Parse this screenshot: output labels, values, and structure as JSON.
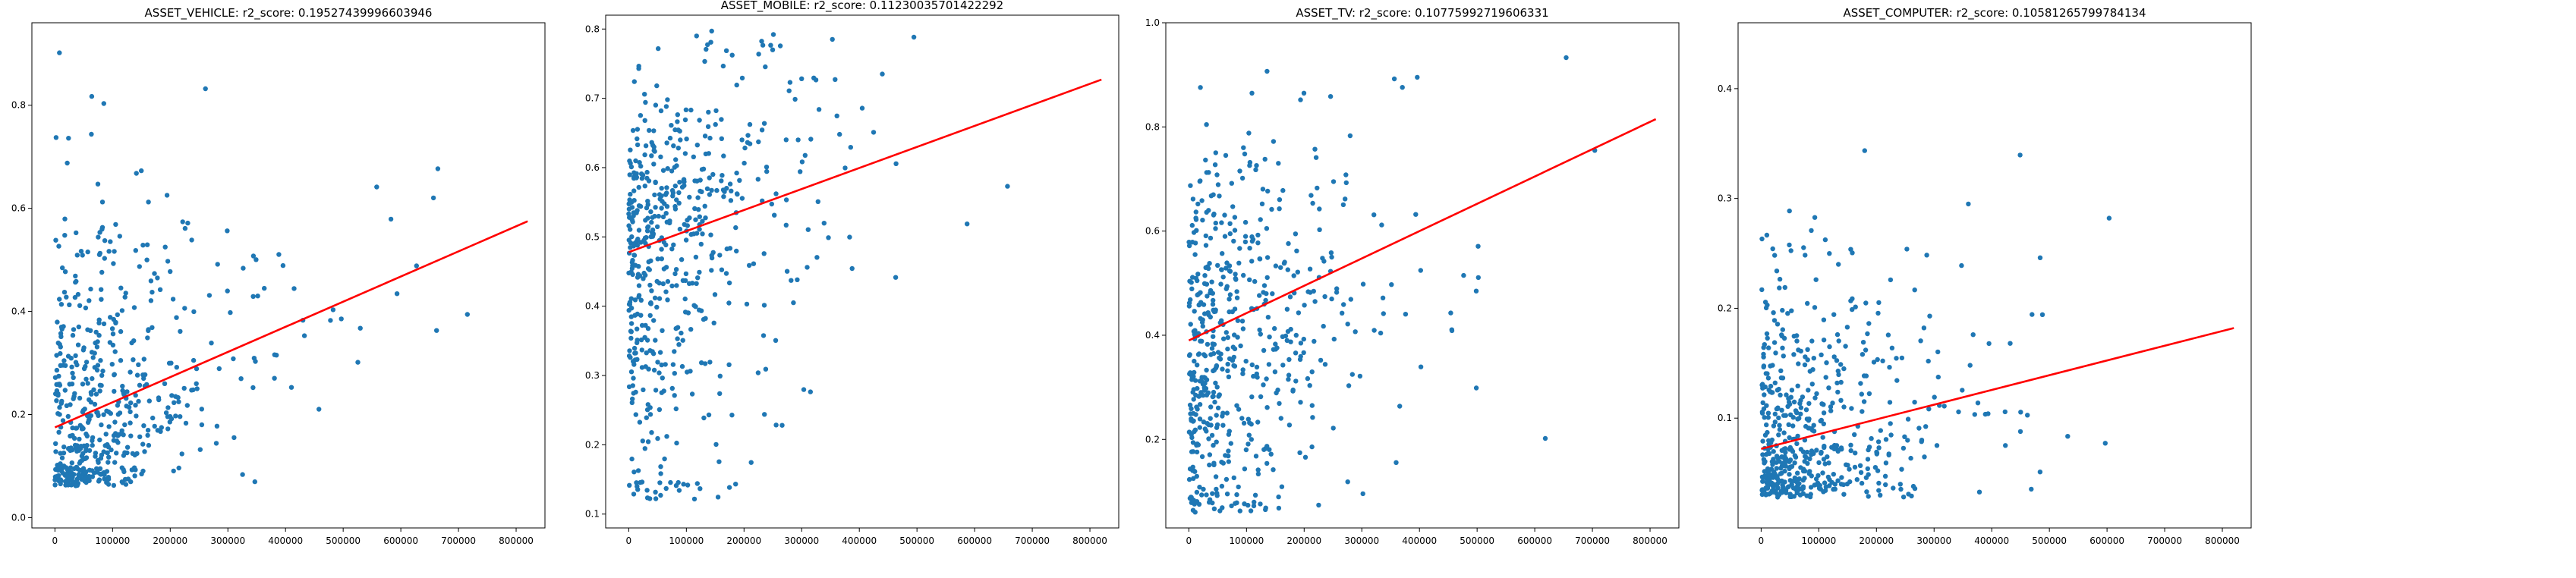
{
  "chart_data": [
    {
      "type": "scatter",
      "title": "ASSET_VEHICLE:  r2_score: 0.19527439996603946",
      "xlabel": "",
      "ylabel": "",
      "xlim": [
        -40000,
        850000
      ],
      "ylim": [
        -0.02,
        0.96
      ],
      "xticks": [
        0,
        100000,
        200000,
        300000,
        400000,
        500000,
        600000,
        700000,
        800000
      ],
      "xtick_labels": [
        "0",
        "100000",
        "200000",
        "300000",
        "400000",
        "500000",
        "600000",
        "700000",
        "800000"
      ],
      "yticks": [
        0.0,
        0.2,
        0.4,
        0.6,
        0.8
      ],
      "ytick_labels": [
        "0.0",
        "0.2",
        "0.4",
        "0.6",
        "0.8"
      ],
      "fit_line": {
        "x": [
          0,
          820000
        ],
        "y": [
          0.175,
          0.575
        ]
      },
      "sample": {
        "n": 560,
        "seed": 11,
        "x_scale": 110000,
        "x_max": 830000,
        "noise": 0.11,
        "skew": 0.9,
        "y_min": 0.06,
        "y_max": 0.91,
        "intercept_shift": -0.02
      }
    },
    {
      "type": "scatter",
      "title": "ASSET_MOBILE:  r2_score: 0.11230035701422292",
      "xlabel": "",
      "ylabel": "",
      "xlim": [
        -40000,
        850000
      ],
      "ylim": [
        0.08,
        0.82
      ],
      "xticks": [
        0,
        100000,
        200000,
        300000,
        400000,
        500000,
        600000,
        700000,
        800000
      ],
      "xtick_labels": [
        "0",
        "100000",
        "200000",
        "300000",
        "400000",
        "500000",
        "600000",
        "700000",
        "800000"
      ],
      "yticks": [
        0.1,
        0.2,
        0.3,
        0.4,
        0.5,
        0.6,
        0.7,
        0.8
      ],
      "ytick_labels": [
        "0.1",
        "0.2",
        "0.3",
        "0.4",
        "0.5",
        "0.6",
        "0.7",
        "0.8"
      ],
      "fit_line": {
        "x": [
          0,
          820000
        ],
        "y": [
          0.478,
          0.727
        ]
      },
      "sample": {
        "n": 560,
        "seed": 23,
        "x_scale": 110000,
        "x_max": 820000,
        "noise": 0.12,
        "skew": -0.6,
        "y_min": 0.12,
        "y_max": 0.8,
        "intercept_shift": 0.0
      }
    },
    {
      "type": "scatter",
      "title": "ASSET_TV:  r2_score: 0.10775992719606331",
      "xlabel": "",
      "ylabel": "",
      "xlim": [
        -40000,
        850000
      ],
      "ylim": [
        0.03,
        1.0
      ],
      "xticks": [
        0,
        100000,
        200000,
        300000,
        400000,
        500000,
        600000,
        700000,
        800000
      ],
      "xtick_labels": [
        "0",
        "100000",
        "200000",
        "300000",
        "400000",
        "500000",
        "600000",
        "700000",
        "800000"
      ],
      "yticks": [
        0.2,
        0.4,
        0.6,
        0.8,
        1.0
      ],
      "ytick_labels": [
        "0.2",
        "0.4",
        "0.6",
        "0.8",
        "1.0"
      ],
      "fit_line": {
        "x": [
          0,
          810000
        ],
        "y": [
          0.39,
          0.815
        ]
      },
      "sample": {
        "n": 560,
        "seed": 37,
        "x_scale": 110000,
        "x_max": 820000,
        "noise": 0.2,
        "skew": 0.0,
        "y_min": 0.06,
        "y_max": 0.96,
        "intercept_shift": -0.04
      }
    },
    {
      "type": "scatter",
      "title": "ASSET_COMPUTER:  r2_score: 0.10581265799784134",
      "xlabel": "",
      "ylabel": "",
      "xlim": [
        -40000,
        850000
      ],
      "ylim": [
        0.0,
        0.46
      ],
      "xticks": [
        0,
        100000,
        200000,
        300000,
        400000,
        500000,
        600000,
        700000,
        800000
      ],
      "xtick_labels": [
        "0",
        "100000",
        "200000",
        "300000",
        "400000",
        "500000",
        "600000",
        "700000",
        "800000"
      ],
      "yticks": [
        0.1,
        0.2,
        0.3,
        0.4
      ],
      "ytick_labels": [
        "0.1",
        "0.2",
        "0.3",
        "0.4"
      ],
      "fit_line": {
        "x": [
          0,
          820000
        ],
        "y": [
          0.072,
          0.182
        ]
      },
      "sample": {
        "n": 560,
        "seed": 53,
        "x_scale": 110000,
        "x_max": 820000,
        "noise": 0.045,
        "skew": 1.1,
        "y_min": 0.028,
        "y_max": 0.44,
        "intercept_shift": -0.012
      }
    }
  ]
}
